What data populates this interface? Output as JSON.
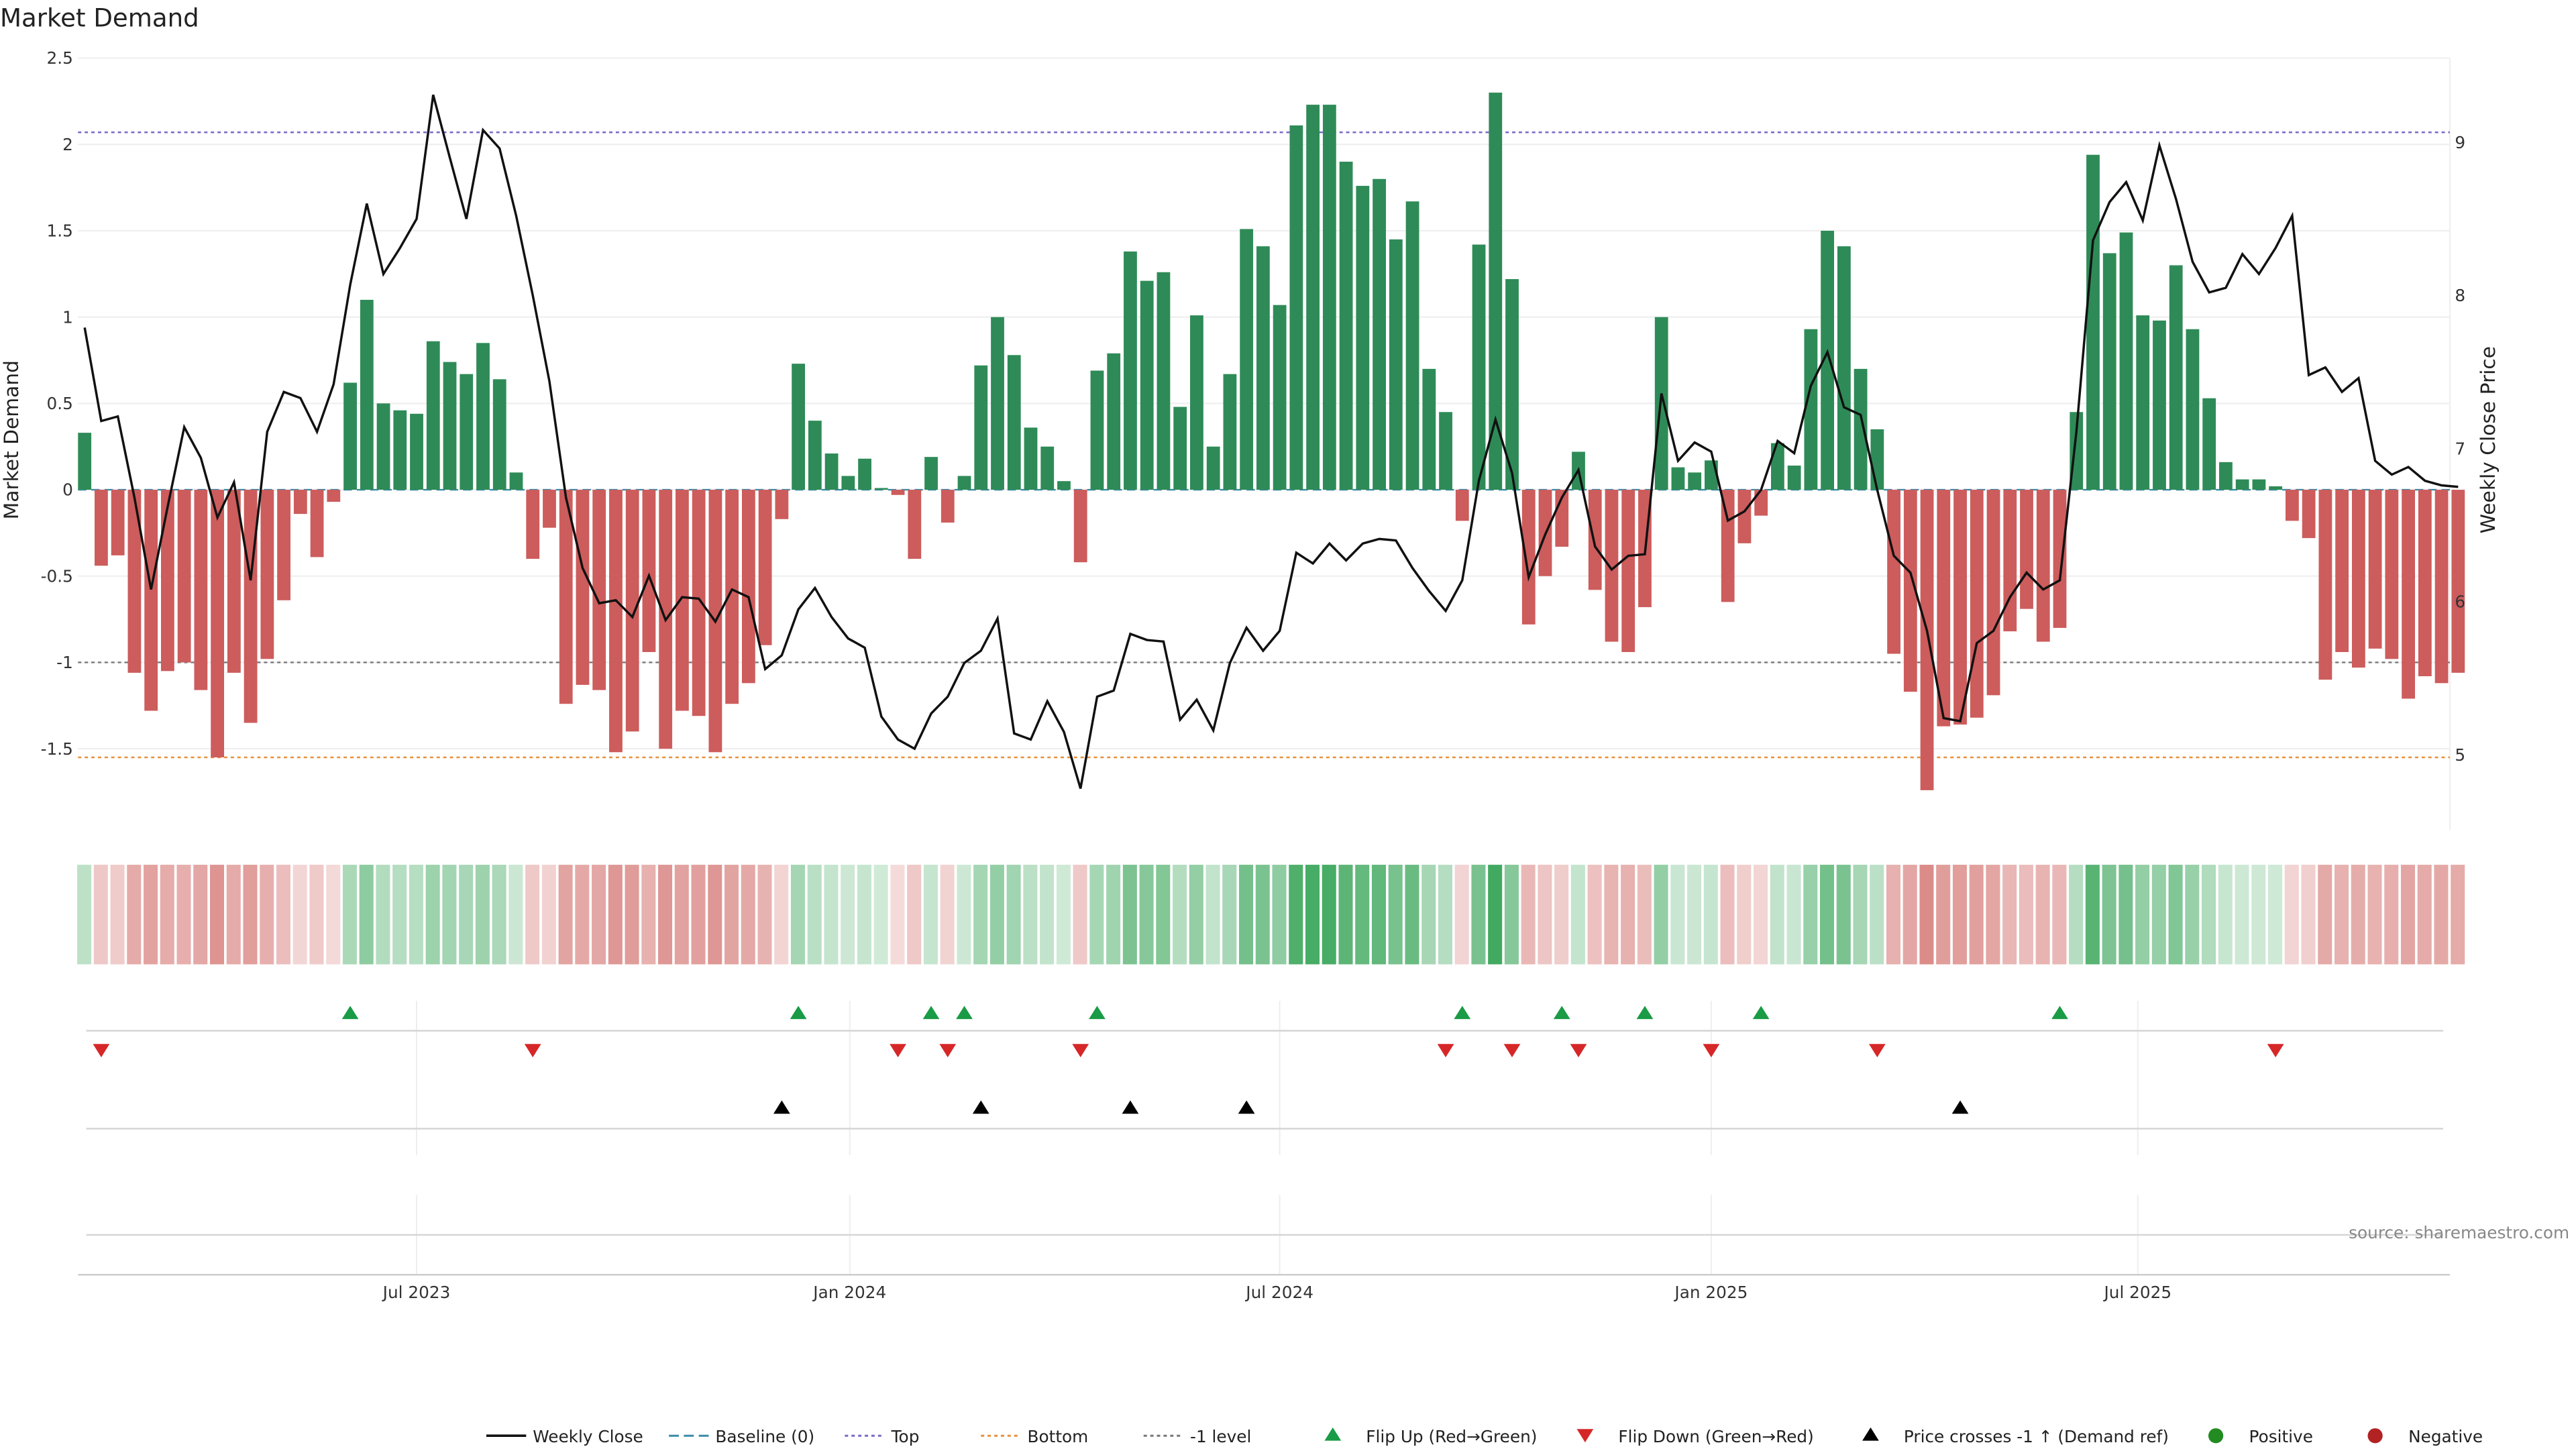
{
  "chart_data": {
    "type": "bar",
    "title": "Market Demand",
    "ylabel": "Market Demand",
    "y2label": "Weekly Close Price",
    "source": "source: sharemaestro.com",
    "ylim": [
      -1.97,
      2.5
    ],
    "y2lim": [
      4.51,
      9.55
    ],
    "y_ticks": [
      "2.5",
      "2",
      "1.5",
      "1",
      "0.5",
      "0",
      "-0.5",
      "-1",
      "-1.5"
    ],
    "y_tick_values": [
      2.5,
      2,
      1.5,
      1,
      0.5,
      0,
      -0.5,
      -1,
      -1.5
    ],
    "y2_ticks": [
      "9",
      "8",
      "7",
      "6",
      "5"
    ],
    "y2_tick_values": [
      9,
      8,
      7,
      6,
      5
    ],
    "x_ticks": [
      {
        "label": "Jul 2023",
        "week": 20
      },
      {
        "label": "Jan 2024",
        "week": 46.1
      },
      {
        "label": "Jul 2024",
        "week": 72
      },
      {
        "label": "Jan 2025",
        "week": 98
      },
      {
        "label": "Jul 2025",
        "week": 123.7
      }
    ],
    "levels": {
      "top": 2.07,
      "bottom": -1.55,
      "minus_one": -1,
      "baseline": 0
    },
    "demand": [
      0.33,
      -0.44,
      -0.38,
      -1.06,
      -1.28,
      -1.05,
      -1.0,
      -1.16,
      -1.55,
      -1.06,
      -1.35,
      -0.98,
      -0.64,
      -0.14,
      -0.39,
      -0.07,
      0.62,
      1.1,
      0.5,
      0.46,
      0.44,
      0.86,
      0.74,
      0.67,
      0.85,
      0.64,
      0.1,
      -0.4,
      -0.22,
      -1.24,
      -1.13,
      -1.16,
      -1.52,
      -1.4,
      -0.94,
      -1.5,
      -1.28,
      -1.31,
      -1.52,
      -1.24,
      -1.12,
      -0.9,
      -0.17,
      0.73,
      0.4,
      0.21,
      0.08,
      0.18,
      0.01,
      -0.03,
      -0.4,
      0.19,
      -0.19,
      0.08,
      0.72,
      1.0,
      0.78,
      0.36,
      0.25,
      0.05,
      -0.42,
      0.69,
      0.79,
      1.38,
      1.21,
      1.26,
      0.48,
      1.01,
      0.25,
      0.67,
      1.51,
      1.41,
      1.07,
      2.11,
      2.23,
      2.23,
      1.9,
      1.76,
      1.8,
      1.45,
      1.67,
      0.7,
      0.45,
      -0.18,
      1.42,
      2.3,
      1.22,
      -0.78,
      -0.5,
      -0.33,
      0.22,
      -0.58,
      -0.88,
      -0.94,
      -0.68,
      1.0,
      0.13,
      0.1,
      0.17,
      -0.65,
      -0.31,
      -0.15,
      0.27,
      0.14,
      0.93,
      1.5,
      1.41,
      0.7,
      0.35,
      -0.95,
      -1.17,
      -1.74,
      -1.37,
      -1.36,
      -1.32,
      -1.19,
      -0.82,
      -0.69,
      -0.88,
      -0.8,
      0.45,
      1.94,
      1.37,
      1.49,
      1.01,
      0.98,
      1.3,
      0.93,
      0.53,
      0.16,
      0.06,
      0.06,
      0.02,
      -0.18,
      -0.28,
      -1.1,
      -0.94,
      -1.03,
      -0.92,
      -0.98,
      -1.21,
      -1.08,
      -1.12,
      -1.06
    ],
    "weekly_close": [
      7.79,
      7.18,
      7.21,
      6.68,
      6.08,
      6.62,
      7.14,
      6.94,
      6.55,
      6.78,
      6.14,
      7.11,
      7.37,
      7.33,
      7.11,
      7.42,
      8.07,
      8.6,
      8.14,
      8.31,
      8.5,
      9.31,
      8.9,
      8.5,
      9.08,
      8.96,
      8.52,
      8.0,
      7.44,
      6.68,
      6.22,
      5.99,
      6.01,
      5.9,
      6.17,
      5.88,
      6.03,
      6.02,
      5.87,
      6.08,
      6.03,
      5.56,
      5.65,
      5.95,
      6.09,
      5.9,
      5.76,
      5.7,
      5.25,
      5.1,
      5.04,
      5.27,
      5.38,
      5.6,
      5.68,
      5.89,
      5.14,
      5.1,
      5.35,
      5.15,
      4.78,
      5.38,
      5.42,
      5.79,
      5.75,
      5.74,
      5.23,
      5.36,
      5.16,
      5.6,
      5.83,
      5.68,
      5.81,
      6.32,
      6.25,
      6.38,
      6.27,
      6.38,
      6.41,
      6.4,
      6.22,
      6.07,
      5.94,
      6.14,
      6.79,
      7.19,
      6.84,
      6.16,
      6.44,
      6.68,
      6.86,
      6.36,
      6.21,
      6.3,
      6.31,
      7.36,
      6.92,
      7.04,
      6.98,
      6.53,
      6.59,
      6.73,
      7.05,
      6.97,
      7.41,
      7.63,
      7.27,
      7.22,
      6.73,
      6.3,
      6.19,
      5.81,
      5.24,
      5.22,
      5.73,
      5.81,
      6.03,
      6.19,
      6.08,
      6.14,
      7.11,
      8.36,
      8.61,
      8.74,
      8.49,
      8.98,
      8.63,
      8.22,
      8.02,
      8.05,
      8.27,
      8.14,
      8.31,
      8.52,
      7.48,
      7.53,
      7.37,
      7.46,
      6.92,
      6.83,
      6.88,
      6.79,
      6.76,
      6.75
    ],
    "flip_up_weeks": [
      16,
      43,
      51,
      53,
      61,
      83,
      89,
      94,
      101,
      119
    ],
    "flip_down_weeks": [
      1,
      27,
      49,
      52,
      60,
      82,
      86,
      90,
      98,
      108,
      132
    ],
    "price_cross_weeks": [
      42,
      54,
      63,
      70,
      113
    ],
    "legend": [
      {
        "label": "Weekly Close",
        "kind": "line",
        "color": "#111111"
      },
      {
        "label": "Baseline (0)",
        "kind": "dash",
        "color": "#3a8aa8"
      },
      {
        "label": "Top",
        "kind": "dot",
        "color": "#7b68c8"
      },
      {
        "label": "Bottom",
        "kind": "dot",
        "color": "#e8903a"
      },
      {
        "label": "-1 level",
        "kind": "dot",
        "color": "#777777"
      },
      {
        "label": "Flip Up (Red→Green)",
        "kind": "up",
        "color": "#1a9b45"
      },
      {
        "label": "Flip Down (Green→Red)",
        "kind": "down",
        "color": "#d62728"
      },
      {
        "label": "Price crosses -1 ↑ (Demand ref)",
        "kind": "up",
        "color": "#000000"
      },
      {
        "label": "Positive",
        "kind": "circle",
        "color": "#228b22"
      },
      {
        "label": "Negative",
        "kind": "circle",
        "color": "#b22222"
      }
    ],
    "colors": {
      "positive": "#2e8b57",
      "negative": "#cd5c5c",
      "price": "#111111"
    }
  }
}
